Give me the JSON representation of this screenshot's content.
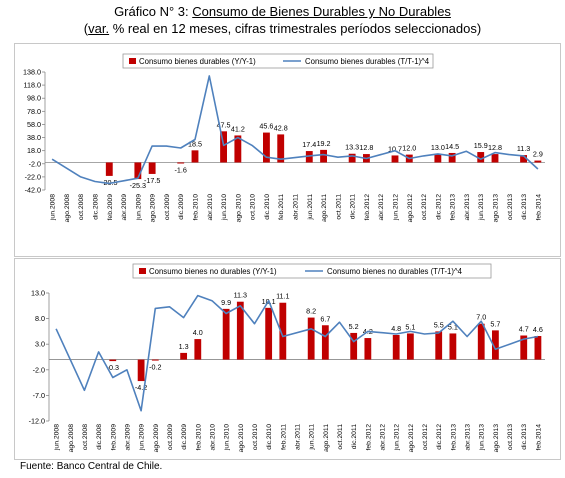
{
  "title": {
    "line1_prefix": "Gráfico N° 3: ",
    "line1_main": "Consumo de Bienes Durables y No Durables",
    "line2_prefix": "(",
    "line2_underlined": "var.",
    "line2_rest": " % real en 12 meses, cifras trimestrales períodos seleccionados)"
  },
  "source": "Fuente: Banco Central de Chile.",
  "colors": {
    "bar": "#C00000",
    "line": "#4F81BD"
  },
  "chart_data": [
    {
      "type": "bar",
      "legend": [
        "Consumo bienes durables (Y/Y-1)",
        "Consumo  bienes durables  (T/T-1)^4"
      ],
      "categories": [
        "jun.2008",
        "ago.2008",
        "oct.2008",
        "dic.2008",
        "feb.2009",
        "abr.2009",
        "jun.2009",
        "ago.2009",
        "oct.2009",
        "dic.2009",
        "feb.2010",
        "abr.2010",
        "jun.2010",
        "ago.2010",
        "oct.2010",
        "dic.2010",
        "feb.2011",
        "abr.2011",
        "jun.2011",
        "ago.2011",
        "oct.2011",
        "dic.2011",
        "feb.2012",
        "abr.2012",
        "jun.2012",
        "ago.2012",
        "oct.2012",
        "dic.2012",
        "feb.2013",
        "abr.2013",
        "jun.2013",
        "ago.2013",
        "oct.2013",
        "dic.2013",
        "feb.2014"
      ],
      "ylim": [
        -42,
        138
      ],
      "yticks": [
        "138.0",
        "118.0",
        "98.0",
        "78.0",
        "58.0",
        "38.0",
        "18.0",
        "-2.0",
        "-22.0",
        "-42.0"
      ],
      "series": [
        {
          "name": "Consumo bienes durables (Y/Y-1)",
          "kind": "bar",
          "points": [
            {
              "x": "feb.2009",
              "y": -20.5,
              "label": "-20.5"
            },
            {
              "x": "jun.2009",
              "y": -25.3,
              "label": "-25.3"
            },
            {
              "x": "ago.2009",
              "y": -17.5,
              "label": "-17.5"
            },
            {
              "x": "dic.2009",
              "y": -1.6,
              "label": "-1.6"
            },
            {
              "x": "feb.2010",
              "y": 18.5,
              "label": "18.5"
            },
            {
              "x": "jun.2010",
              "y": 47.5,
              "label": "47.5"
            },
            {
              "x": "ago.2010",
              "y": 41.2,
              "label": "41.2"
            },
            {
              "x": "dic.2010",
              "y": 45.6,
              "label": "45.6"
            },
            {
              "x": "feb.2011",
              "y": 42.8,
              "label": "42.8"
            },
            {
              "x": "jun.2011",
              "y": 17.4,
              "label": "17.4"
            },
            {
              "x": "ago.2011",
              "y": 19.2,
              "label": "19.2"
            },
            {
              "x": "dic.2011",
              "y": 13.3,
              "label": "13.3"
            },
            {
              "x": "feb.2012",
              "y": 12.8,
              "label": "12.8"
            },
            {
              "x": "jun.2012",
              "y": 10.7,
              "label": "10.7"
            },
            {
              "x": "ago.2012",
              "y": 12.0,
              "label": "12.0"
            },
            {
              "x": "dic.2012",
              "y": 13.0,
              "label": "13.0"
            },
            {
              "x": "feb.2013",
              "y": 14.5,
              "label": "14.5"
            },
            {
              "x": "jun.2013",
              "y": 15.9,
              "label": "15.9"
            },
            {
              "x": "ago.2013",
              "y": 12.8,
              "label": "12.8"
            },
            {
              "x": "dic.2013",
              "y": 11.3,
              "label": "11.3"
            },
            {
              "x": "feb.2014",
              "y": 2.9,
              "label": "2.9"
            }
          ]
        },
        {
          "name": "Consumo  bienes durables  (T/T-1)^4",
          "kind": "line",
          "points": [
            {
              "x": "jun.2008",
              "y": 5
            },
            {
              "x": "oct.2008",
              "y": -22
            },
            {
              "x": "dic.2008",
              "y": -29
            },
            {
              "x": "feb.2009",
              "y": -32
            },
            {
              "x": "abr.2009",
              "y": -28
            },
            {
              "x": "jun.2009",
              "y": -24
            },
            {
              "x": "ago.2009",
              "y": 25
            },
            {
              "x": "oct.2009",
              "y": 25
            },
            {
              "x": "dic.2009",
              "y": 22
            },
            {
              "x": "feb.2010",
              "y": 35
            },
            {
              "x": "abr.2010",
              "y": 132
            },
            {
              "x": "jun.2010",
              "y": 26
            },
            {
              "x": "ago.2010",
              "y": 38
            },
            {
              "x": "oct.2010",
              "y": 26
            },
            {
              "x": "dic.2010",
              "y": 8
            },
            {
              "x": "feb.2011",
              "y": 5
            },
            {
              "x": "jun.2011",
              "y": 10
            },
            {
              "x": "ago.2011",
              "y": 12
            },
            {
              "x": "oct.2011",
              "y": 8
            },
            {
              "x": "dic.2011",
              "y": 10
            },
            {
              "x": "feb.2012",
              "y": 6
            },
            {
              "x": "jun.2012",
              "y": 18
            },
            {
              "x": "ago.2012",
              "y": 6
            },
            {
              "x": "oct.2012",
              "y": 10
            },
            {
              "x": "dic.2012",
              "y": 13
            },
            {
              "x": "feb.2013",
              "y": 10
            },
            {
              "x": "abr.2013",
              "y": 17
            },
            {
              "x": "jun.2013",
              "y": 5
            },
            {
              "x": "ago.2013",
              "y": 15
            },
            {
              "x": "oct.2013",
              "y": 12
            },
            {
              "x": "dic.2013",
              "y": 10
            },
            {
              "x": "feb.2014",
              "y": -10
            }
          ]
        }
      ]
    },
    {
      "type": "bar",
      "legend": [
        "Consumo  bienes no durables (Y/Y-1)",
        "Consumo  bienes no durables  (T/T-1)^4"
      ],
      "categories": [
        "jun.2008",
        "ago.2008",
        "oct.2008",
        "dic.2008",
        "feb.2009",
        "abr.2009",
        "jun.2009",
        "ago.2009",
        "oct.2009",
        "dic.2009",
        "feb.2010",
        "abr.2010",
        "jun.2010",
        "ago.2010",
        "oct.2010",
        "dic.2010",
        "feb.2011",
        "abr.2011",
        "jun.2011",
        "ago.2011",
        "oct.2011",
        "dic.2011",
        "feb.2012",
        "abr.2012",
        "jun.2012",
        "ago.2012",
        "oct.2012",
        "dic.2012",
        "feb.2013",
        "abr.2013",
        "jun.2013",
        "ago.2013",
        "oct.2013",
        "dic.2013",
        "feb.2014"
      ],
      "ylim": [
        -12,
        13
      ],
      "yticks": [
        "13.0",
        "8.0",
        "3.0",
        "-2.0",
        "-7.0",
        "-12.0"
      ],
      "series": [
        {
          "name": "Consumo  bienes no durables (Y/Y-1)",
          "kind": "bar",
          "points": [
            {
              "x": "feb.2009",
              "y": -0.3,
              "label": "-0.3"
            },
            {
              "x": "jun.2009",
              "y": -4.2,
              "label": "-4.2"
            },
            {
              "x": "ago.2009",
              "y": -0.2,
              "label": "-0.2"
            },
            {
              "x": "dic.2009",
              "y": 1.3,
              "label": "1.3"
            },
            {
              "x": "feb.2010",
              "y": 4.0,
              "label": "4.0"
            },
            {
              "x": "jun.2010",
              "y": 9.9,
              "label": "9.9"
            },
            {
              "x": "ago.2010",
              "y": 11.3,
              "label": "11.3"
            },
            {
              "x": "dic.2010",
              "y": 10.1,
              "label": "10.1"
            },
            {
              "x": "feb.2011",
              "y": 11.1,
              "label": "11.1"
            },
            {
              "x": "jun.2011",
              "y": 8.2,
              "label": "8.2"
            },
            {
              "x": "ago.2011",
              "y": 6.7,
              "label": "6.7"
            },
            {
              "x": "dic.2011",
              "y": 5.2,
              "label": "5.2"
            },
            {
              "x": "feb.2012",
              "y": 4.2,
              "label": "4.2"
            },
            {
              "x": "jun.2012",
              "y": 4.8,
              "label": "4.8"
            },
            {
              "x": "ago.2012",
              "y": 5.1,
              "label": "5.1"
            },
            {
              "x": "dic.2012",
              "y": 5.5,
              "label": "5.5"
            },
            {
              "x": "feb.2013",
              "y": 5.1,
              "label": "5.1"
            },
            {
              "x": "jun.2013",
              "y": 7.0,
              "label": "7.0"
            },
            {
              "x": "ago.2013",
              "y": 5.7,
              "label": "5.7"
            },
            {
              "x": "dic.2013",
              "y": 4.7,
              "label": "4.7"
            },
            {
              "x": "feb.2014",
              "y": 4.6,
              "label": "4.6"
            }
          ]
        },
        {
          "name": "Consumo  bienes no durables  (T/T-1)^4",
          "kind": "line",
          "points": [
            {
              "x": "jun.2008",
              "y": 6.0
            },
            {
              "x": "oct.2008",
              "y": -6.0
            },
            {
              "x": "dic.2008",
              "y": 1.5
            },
            {
              "x": "feb.2009",
              "y": -3.5
            },
            {
              "x": "abr.2009",
              "y": -2.0
            },
            {
              "x": "jun.2009",
              "y": -10.0
            },
            {
              "x": "ago.2009",
              "y": 10.0
            },
            {
              "x": "oct.2009",
              "y": 10.3
            },
            {
              "x": "dic.2009",
              "y": 8.2
            },
            {
              "x": "feb.2010",
              "y": 12.5
            },
            {
              "x": "abr.2010",
              "y": 11.5
            },
            {
              "x": "jun.2010",
              "y": 9.0
            },
            {
              "x": "ago.2010",
              "y": 10.5
            },
            {
              "x": "oct.2010",
              "y": 7.0
            },
            {
              "x": "dic.2010",
              "y": 11.5
            },
            {
              "x": "feb.2011",
              "y": 4.5
            },
            {
              "x": "jun.2011",
              "y": 6.0
            },
            {
              "x": "ago.2011",
              "y": 4.5
            },
            {
              "x": "oct.2011",
              "y": 7.3
            },
            {
              "x": "dic.2011",
              "y": 3.5
            },
            {
              "x": "feb.2012",
              "y": 5.5
            },
            {
              "x": "jun.2012",
              "y": 5.0
            },
            {
              "x": "ago.2012",
              "y": 5.5
            },
            {
              "x": "oct.2012",
              "y": 5.0
            },
            {
              "x": "dic.2012",
              "y": 5.2
            },
            {
              "x": "feb.2013",
              "y": 7.5
            },
            {
              "x": "abr.2013",
              "y": 4.5
            },
            {
              "x": "jun.2013",
              "y": 7.5
            },
            {
              "x": "ago.2013",
              "y": 2.0
            },
            {
              "x": "oct.2013",
              "y": 3.0
            },
            {
              "x": "dic.2013",
              "y": 4.0
            },
            {
              "x": "feb.2014",
              "y": 4.5
            }
          ]
        }
      ]
    }
  ]
}
